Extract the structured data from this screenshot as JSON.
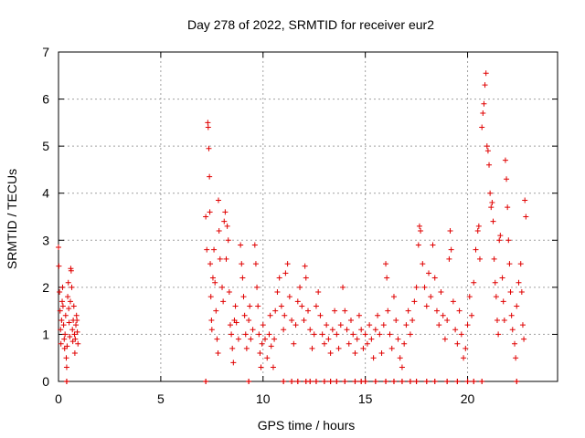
{
  "chart_data": {
    "type": "scatter",
    "title": "Day 278 of 2022, SRMTID for receiver eur2",
    "xlabel": "GPS time / hours",
    "ylabel": "SRMTID / TECUs",
    "xlim": [
      0,
      24.4
    ],
    "ylim": [
      0,
      7
    ],
    "xticks": [
      0,
      5,
      10,
      15,
      20
    ],
    "yticks": [
      0,
      1,
      2,
      3,
      4,
      5,
      6,
      7
    ],
    "grid": true,
    "marker": "+",
    "color": "#e00000",
    "series": [
      {
        "name": "SRMTID",
        "points": [
          [
            0.0,
            2.85
          ],
          [
            0.02,
            2.45
          ],
          [
            0.05,
            1.9
          ],
          [
            0.08,
            1.5
          ],
          [
            0.1,
            1.1
          ],
          [
            0.12,
            0.8
          ],
          [
            0.15,
            1.3
          ],
          [
            0.18,
            1.7
          ],
          [
            0.2,
            2.0
          ],
          [
            0.22,
            1.6
          ],
          [
            0.25,
            1.2
          ],
          [
            0.28,
            0.9
          ],
          [
            0.3,
            0.7
          ],
          [
            0.32,
            1.0
          ],
          [
            0.35,
            1.4
          ],
          [
            0.38,
            0.5
          ],
          [
            0.4,
            0.3
          ],
          [
            0.42,
            0.75
          ],
          [
            0.45,
            1.8
          ],
          [
            0.48,
            2.1
          ],
          [
            0.5,
            1.55
          ],
          [
            0.52,
            1.25
          ],
          [
            0.55,
            0.95
          ],
          [
            0.58,
            1.7
          ],
          [
            0.6,
            2.4
          ],
          [
            0.62,
            2.35
          ],
          [
            0.65,
            2.0
          ],
          [
            0.68,
            1.1
          ],
          [
            0.7,
            0.85
          ],
          [
            0.72,
            1.3
          ],
          [
            0.75,
            1.6
          ],
          [
            0.78,
            1.0
          ],
          [
            0.8,
            0.6
          ],
          [
            0.82,
            0.9
          ],
          [
            0.85,
            1.2
          ],
          [
            0.88,
            1.4
          ],
          [
            0.9,
            1.3
          ],
          [
            0.92,
            1.05
          ],
          [
            0.95,
            0.8
          ],
          [
            7.2,
            3.5
          ],
          [
            7.25,
            2.8
          ],
          [
            7.3,
            5.5
          ],
          [
            7.32,
            5.4
          ],
          [
            7.35,
            4.95
          ],
          [
            7.38,
            4.35
          ],
          [
            7.4,
            3.6
          ],
          [
            7.42,
            2.5
          ],
          [
            7.45,
            1.8
          ],
          [
            7.48,
            1.3
          ],
          [
            7.5,
            1.1
          ],
          [
            7.55,
            2.2
          ],
          [
            7.6,
            2.8
          ],
          [
            7.65,
            2.1
          ],
          [
            7.7,
            1.5
          ],
          [
            7.75,
            0.9
          ],
          [
            7.8,
            0.6
          ],
          [
            7.82,
            3.85
          ],
          [
            7.85,
            3.2
          ],
          [
            7.9,
            2.6
          ],
          [
            8.0,
            2.0
          ],
          [
            8.05,
            1.7
          ],
          [
            8.1,
            3.4
          ],
          [
            8.15,
            3.6
          ],
          [
            8.2,
            2.6
          ],
          [
            8.25,
            3.3
          ],
          [
            8.3,
            3.0
          ],
          [
            8.35,
            1.9
          ],
          [
            8.4,
            1.2
          ],
          [
            8.45,
            1.0
          ],
          [
            8.5,
            0.7
          ],
          [
            8.55,
            0.4
          ],
          [
            8.6,
            1.3
          ],
          [
            8.65,
            1.6
          ],
          [
            8.7,
            1.25
          ],
          [
            8.8,
            0.9
          ],
          [
            8.9,
            2.9
          ],
          [
            8.95,
            2.5
          ],
          [
            9.0,
            2.2
          ],
          [
            9.05,
            1.8
          ],
          [
            9.1,
            1.4
          ],
          [
            9.15,
            1.0
          ],
          [
            9.2,
            0.7
          ],
          [
            9.3,
            1.3
          ],
          [
            9.35,
            1.6
          ],
          [
            9.4,
            0.9
          ],
          [
            9.5,
            1.1
          ],
          [
            9.6,
            2.9
          ],
          [
            9.65,
            2.5
          ],
          [
            9.7,
            2.0
          ],
          [
            9.75,
            1.6
          ],
          [
            9.8,
            1.0
          ],
          [
            9.85,
            0.6
          ],
          [
            9.9,
            0.3
          ],
          [
            9.95,
            0.8
          ],
          [
            10.0,
            1.2
          ],
          [
            10.1,
            0.9
          ],
          [
            10.2,
            0.5
          ],
          [
            10.3,
            1.0
          ],
          [
            10.35,
            1.4
          ],
          [
            10.4,
            0.75
          ],
          [
            10.5,
            0.3
          ],
          [
            10.55,
            0.9
          ],
          [
            10.6,
            1.5
          ],
          [
            10.7,
            1.9
          ],
          [
            10.8,
            2.2
          ],
          [
            10.9,
            1.6
          ],
          [
            11.0,
            1.1
          ],
          [
            11.05,
            1.4
          ],
          [
            11.1,
            2.3
          ],
          [
            11.2,
            2.5
          ],
          [
            11.3,
            1.8
          ],
          [
            11.4,
            1.3
          ],
          [
            11.5,
            0.8
          ],
          [
            11.6,
            1.2
          ],
          [
            11.7,
            1.7
          ],
          [
            11.8,
            2.0
          ],
          [
            11.9,
            1.6
          ],
          [
            12.0,
            1.3
          ],
          [
            12.05,
            2.45
          ],
          [
            12.1,
            2.2
          ],
          [
            12.2,
            1.5
          ],
          [
            12.3,
            1.1
          ],
          [
            12.4,
            0.7
          ],
          [
            12.5,
            1.0
          ],
          [
            12.6,
            1.6
          ],
          [
            12.7,
            1.9
          ],
          [
            12.8,
            1.4
          ],
          [
            12.9,
            1.0
          ],
          [
            13.0,
            0.8
          ],
          [
            13.1,
            1.2
          ],
          [
            13.2,
            0.9
          ],
          [
            13.3,
            0.6
          ],
          [
            13.4,
            1.1
          ],
          [
            13.5,
            1.5
          ],
          [
            13.6,
            1.0
          ],
          [
            13.7,
            0.7
          ],
          [
            13.8,
            1.2
          ],
          [
            13.9,
            2.0
          ],
          [
            14.0,
            1.5
          ],
          [
            14.1,
            1.1
          ],
          [
            14.2,
            0.8
          ],
          [
            14.3,
            1.3
          ],
          [
            14.4,
            1.0
          ],
          [
            14.5,
            0.6
          ],
          [
            14.6,
            0.9
          ],
          [
            14.7,
            1.4
          ],
          [
            14.8,
            1.1
          ],
          [
            14.9,
            0.7
          ],
          [
            15.0,
            1.0
          ],
          [
            15.1,
            0.8
          ],
          [
            15.2,
            1.2
          ],
          [
            15.3,
            0.9
          ],
          [
            15.4,
            0.5
          ],
          [
            15.5,
            1.1
          ],
          [
            15.6,
            1.4
          ],
          [
            15.7,
            1.0
          ],
          [
            15.8,
            0.6
          ],
          [
            15.9,
            1.2
          ],
          [
            16.0,
            2.5
          ],
          [
            16.05,
            2.2
          ],
          [
            16.1,
            1.5
          ],
          [
            16.2,
            1.0
          ],
          [
            16.3,
            0.7
          ],
          [
            16.4,
            1.8
          ],
          [
            16.5,
            1.3
          ],
          [
            16.6,
            0.9
          ],
          [
            16.7,
            0.5
          ],
          [
            16.8,
            0.3
          ],
          [
            16.9,
            0.8
          ],
          [
            17.0,
            1.2
          ],
          [
            17.1,
            1.5
          ],
          [
            17.2,
            1.0
          ],
          [
            17.3,
            1.3
          ],
          [
            17.4,
            1.7
          ],
          [
            17.5,
            2.0
          ],
          [
            17.6,
            2.9
          ],
          [
            17.65,
            3.3
          ],
          [
            17.7,
            3.2
          ],
          [
            17.8,
            2.5
          ],
          [
            17.9,
            2.0
          ],
          [
            18.0,
            1.6
          ],
          [
            18.1,
            2.3
          ],
          [
            18.2,
            1.8
          ],
          [
            18.3,
            2.9
          ],
          [
            18.4,
            2.2
          ],
          [
            18.5,
            1.5
          ],
          [
            18.6,
            1.2
          ],
          [
            18.7,
            1.9
          ],
          [
            18.8,
            1.4
          ],
          [
            18.9,
            0.9
          ],
          [
            19.0,
            1.3
          ],
          [
            19.1,
            2.6
          ],
          [
            19.15,
            3.2
          ],
          [
            19.2,
            2.8
          ],
          [
            19.3,
            1.7
          ],
          [
            19.4,
            1.1
          ],
          [
            19.5,
            0.8
          ],
          [
            19.6,
            1.5
          ],
          [
            19.7,
            1.0
          ],
          [
            19.8,
            0.5
          ],
          [
            19.9,
            0.7
          ],
          [
            20.0,
            1.2
          ],
          [
            20.1,
            1.8
          ],
          [
            20.2,
            1.4
          ],
          [
            20.3,
            2.1
          ],
          [
            20.4,
            2.8
          ],
          [
            20.5,
            3.2
          ],
          [
            20.55,
            3.3
          ],
          [
            20.6,
            2.6
          ],
          [
            20.7,
            5.4
          ],
          [
            20.75,
            5.7
          ],
          [
            20.8,
            5.9
          ],
          [
            20.85,
            6.3
          ],
          [
            20.9,
            6.55
          ],
          [
            20.95,
            5.0
          ],
          [
            21.0,
            4.9
          ],
          [
            21.05,
            4.6
          ],
          [
            21.1,
            4.0
          ],
          [
            21.15,
            3.7
          ],
          [
            21.2,
            3.8
          ],
          [
            21.25,
            3.4
          ],
          [
            21.3,
            2.6
          ],
          [
            21.35,
            2.1
          ],
          [
            21.4,
            1.8
          ],
          [
            21.45,
            1.3
          ],
          [
            21.5,
            1.0
          ],
          [
            21.55,
            3.0
          ],
          [
            21.6,
            3.1
          ],
          [
            21.7,
            2.2
          ],
          [
            21.75,
            1.7
          ],
          [
            21.8,
            1.3
          ],
          [
            21.85,
            4.7
          ],
          [
            21.9,
            4.3
          ],
          [
            21.95,
            3.7
          ],
          [
            22.0,
            3.0
          ],
          [
            22.05,
            2.5
          ],
          [
            22.1,
            1.9
          ],
          [
            22.15,
            1.4
          ],
          [
            22.2,
            1.1
          ],
          [
            22.3,
            0.8
          ],
          [
            22.35,
            0.5
          ],
          [
            22.4,
            1.6
          ],
          [
            22.5,
            2.1
          ],
          [
            22.6,
            2.5
          ],
          [
            22.65,
            1.9
          ],
          [
            22.7,
            1.2
          ],
          [
            22.75,
            0.9
          ],
          [
            22.8,
            3.85
          ],
          [
            22.85,
            3.5
          ]
        ]
      }
    ],
    "baseline_x": [
      0.4,
      7.2,
      9.3,
      11.0,
      11.4,
      11.7,
      12.1,
      12.3,
      12.6,
      13.0,
      13.3,
      13.6,
      14.0,
      14.5,
      14.8,
      15.0,
      15.5,
      16.0,
      16.4,
      16.8,
      17.2,
      17.5,
      18.0,
      18.4,
      19.0,
      19.5,
      20.0,
      20.3,
      20.7,
      22.4
    ]
  }
}
